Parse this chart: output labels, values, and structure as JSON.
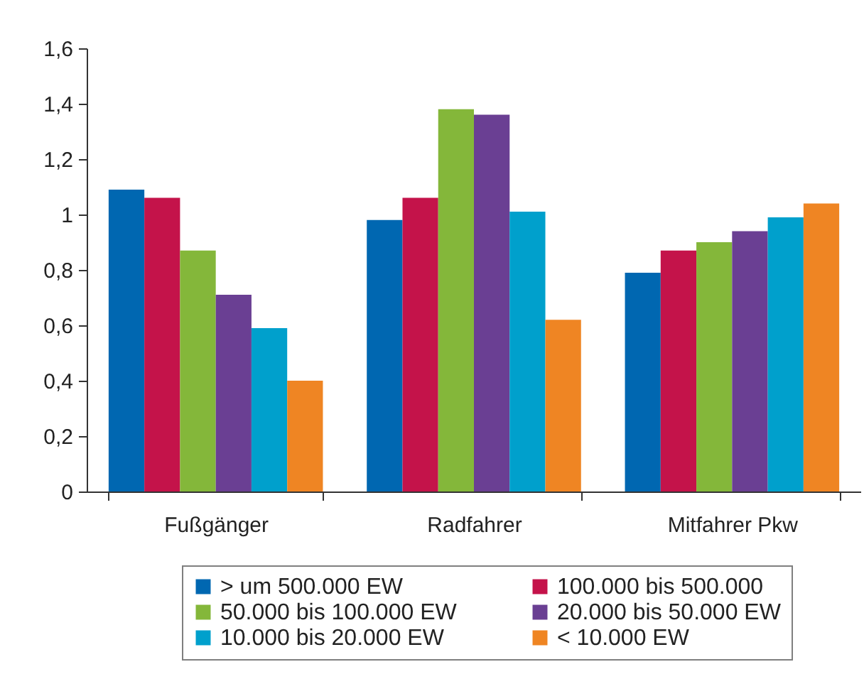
{
  "chart_data": {
    "type": "bar",
    "categories": [
      "Fußgänger",
      "Radfahrer",
      "Mitfahrer Pkw"
    ],
    "series": [
      {
        "name": "> um 500.000 EW",
        "color": "#0067b1",
        "values": [
          1.09,
          0.98,
          0.79
        ]
      },
      {
        "name": "100.000 bis 500.000",
        "color": "#c4134a",
        "values": [
          1.06,
          1.06,
          0.87
        ]
      },
      {
        "name": "50.000 bis 100.000 EW",
        "color": "#84b73a",
        "values": [
          0.87,
          1.38,
          0.9
        ]
      },
      {
        "name": "20.000 bis 50.000 EW",
        "color": "#6a3f93",
        "values": [
          0.71,
          1.36,
          0.94
        ]
      },
      {
        "name": "10.000 bis 20.000 EW",
        "color": "#00a0cc",
        "values": [
          0.59,
          1.01,
          0.99
        ]
      },
      {
        "name": "< 10.000 EW",
        "color": "#ef8523",
        "values": [
          0.4,
          0.62,
          1.04
        ]
      }
    ],
    "ylim": [
      0,
      1.6
    ],
    "yticks": [
      0,
      {
        "value": 0.2,
        "label": "0,2"
      },
      {
        "value": 0.4,
        "label": "0,4"
      },
      {
        "value": 0.6,
        "label": "0,6"
      },
      {
        "value": 0.8,
        "label": "0,8"
      },
      1,
      {
        "value": 1.2,
        "label": "1,2"
      },
      {
        "value": 1.4,
        "label": "1,4"
      },
      {
        "value": 1.6,
        "label": "1,6"
      }
    ],
    "grid": false,
    "legend": "bottom"
  }
}
